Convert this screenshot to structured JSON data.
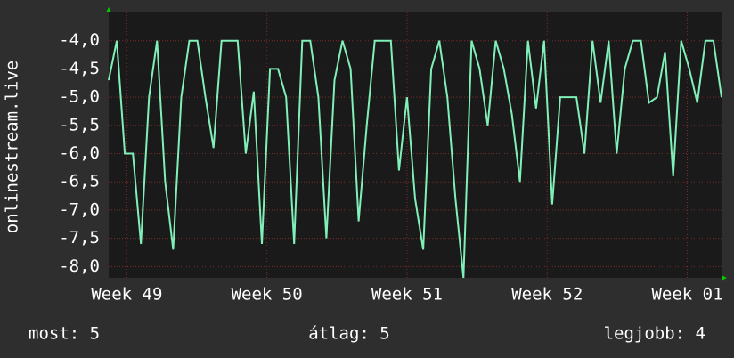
{
  "chart_data": {
    "type": "line",
    "y_label": "onlinestream.live",
    "x": [
      0,
      0.4,
      0.8,
      1.2,
      1.6,
      2,
      2.4,
      2.8,
      3.2,
      3.6,
      4,
      4.4,
      4.8,
      5.2,
      5.6,
      6,
      6.4,
      6.8,
      7.2,
      7.6,
      8,
      8.4,
      8.8,
      9.2,
      9.6,
      10,
      10.4,
      10.8,
      11.2,
      11.6,
      12,
      12.4,
      12.8,
      13.2,
      13.6,
      14,
      14.4,
      14.8,
      15.2,
      15.6,
      16,
      16.4,
      16.8,
      17.2,
      17.6,
      18,
      18.4,
      18.8,
      19.2,
      19.6,
      20,
      20.4,
      20.8,
      21.2,
      21.6,
      22,
      22.4,
      22.8,
      23.2,
      23.6,
      24,
      24.4,
      24.8,
      25.2,
      25.6,
      26,
      26.4,
      26.8,
      27.2,
      27.6,
      28,
      28.4,
      28.8,
      29.2,
      29.6,
      30,
      30.4
    ],
    "values": [
      -4.7,
      -4,
      -6,
      -6,
      -7.6,
      -5,
      -4,
      -6.5,
      -7.7,
      -5,
      -4,
      -4,
      -5,
      -5.9,
      -4,
      -4,
      -4,
      -6,
      -4.9,
      -7.6,
      -4.5,
      -4.5,
      -5,
      -7.6,
      -4,
      -4,
      -5,
      -7.5,
      -4.7,
      -4,
      -4.5,
      -7.2,
      -5.5,
      -4,
      -4,
      -4,
      -6.3,
      -5,
      -6.8,
      -7.7,
      -4.5,
      -4,
      -5,
      -6.8,
      -8.2,
      -4,
      -4.5,
      -5.5,
      -4,
      -4.5,
      -5.3,
      -6.5,
      -4,
      -5.2,
      -4,
      -6.9,
      -5,
      -5,
      -5,
      -6,
      -4,
      -5.1,
      -4,
      -6,
      -4.5,
      -4,
      -4,
      -5.1,
      -5,
      -4.2,
      -6.4,
      -4,
      -4.5,
      -5.1,
      -4,
      -4,
      -5
    ],
    "color": "#80f0b8",
    "xlim": [
      0,
      30.4
    ],
    "xticks": [
      {
        "value": 0.9,
        "label": "Week 49"
      },
      {
        "value": 7.85,
        "label": "Week 50"
      },
      {
        "value": 14.8,
        "label": "Week 51"
      },
      {
        "value": 21.75,
        "label": "Week 52"
      },
      {
        "value": 28.7,
        "label": "Week 01"
      }
    ],
    "ylim": [
      -8.2,
      -3.5
    ],
    "yticks": [
      {
        "value": -4,
        "label": "-4,0"
      },
      {
        "value": -4.5,
        "label": "-4,5"
      },
      {
        "value": -5,
        "label": "-5,0"
      },
      {
        "value": -5.5,
        "label": "-5,5"
      },
      {
        "value": -6,
        "label": "-6,0"
      },
      {
        "value": -6.5,
        "label": "-6,5"
      },
      {
        "value": -7,
        "label": "-7,0"
      },
      {
        "value": -7.5,
        "label": "-7,5"
      },
      {
        "value": -8,
        "label": "-8,0"
      }
    ],
    "grid": true,
    "stats": [
      "most: 5",
      "átlag: 5",
      "legjobb: 4"
    ]
  }
}
